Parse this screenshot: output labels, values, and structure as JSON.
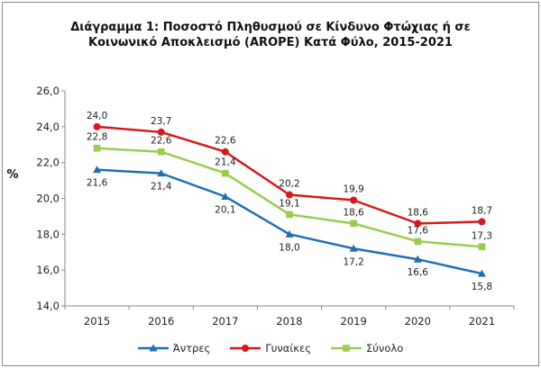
{
  "chart_data": {
    "type": "line",
    "title_line1": "Διάγραμμα 1: Ποσοστό Πληθυσμού σε Κίνδυνο Φτώχιας ή σε",
    "title_line2": "Κοινωνικό Αποκλεισμό (AROPE) Κατά Φύλο, 2015-2021",
    "ylabel": "%",
    "xlabel": "",
    "x": [
      "2015",
      "2016",
      "2017",
      "2018",
      "2019",
      "2020",
      "2021"
    ],
    "ylim": [
      14.0,
      26.0
    ],
    "yticks": [
      "14,0",
      "16,0",
      "18,0",
      "20,0",
      "22,0",
      "24,0",
      "26,0"
    ],
    "series": [
      {
        "name": "Άντρες",
        "color": "#1f6fb5",
        "marker": "triangle",
        "values": [
          21.6,
          21.4,
          20.1,
          18.0,
          17.2,
          16.6,
          15.8
        ],
        "labels": [
          "21,6",
          "21,4",
          "20,1",
          "18,0",
          "17,2",
          "16,6",
          "15,8"
        ]
      },
      {
        "name": "Γυναίκες",
        "color": "#d7191c",
        "marker": "circle",
        "values": [
          24.0,
          23.7,
          22.6,
          20.2,
          19.9,
          18.6,
          18.7
        ],
        "labels": [
          "24,0",
          "23,7",
          "22,6",
          "20,2",
          "19,9",
          "18,6",
          "18,7"
        ]
      },
      {
        "name": "Σύνολο",
        "color": "#9acd4e",
        "marker": "square",
        "values": [
          22.8,
          22.6,
          21.4,
          19.1,
          18.6,
          17.6,
          17.3
        ],
        "labels": [
          "22,8",
          "22,6",
          "21,4",
          "19,1",
          "18,6",
          "17,6",
          "17,3"
        ]
      }
    ],
    "grid": false,
    "legend_position": "bottom"
  }
}
